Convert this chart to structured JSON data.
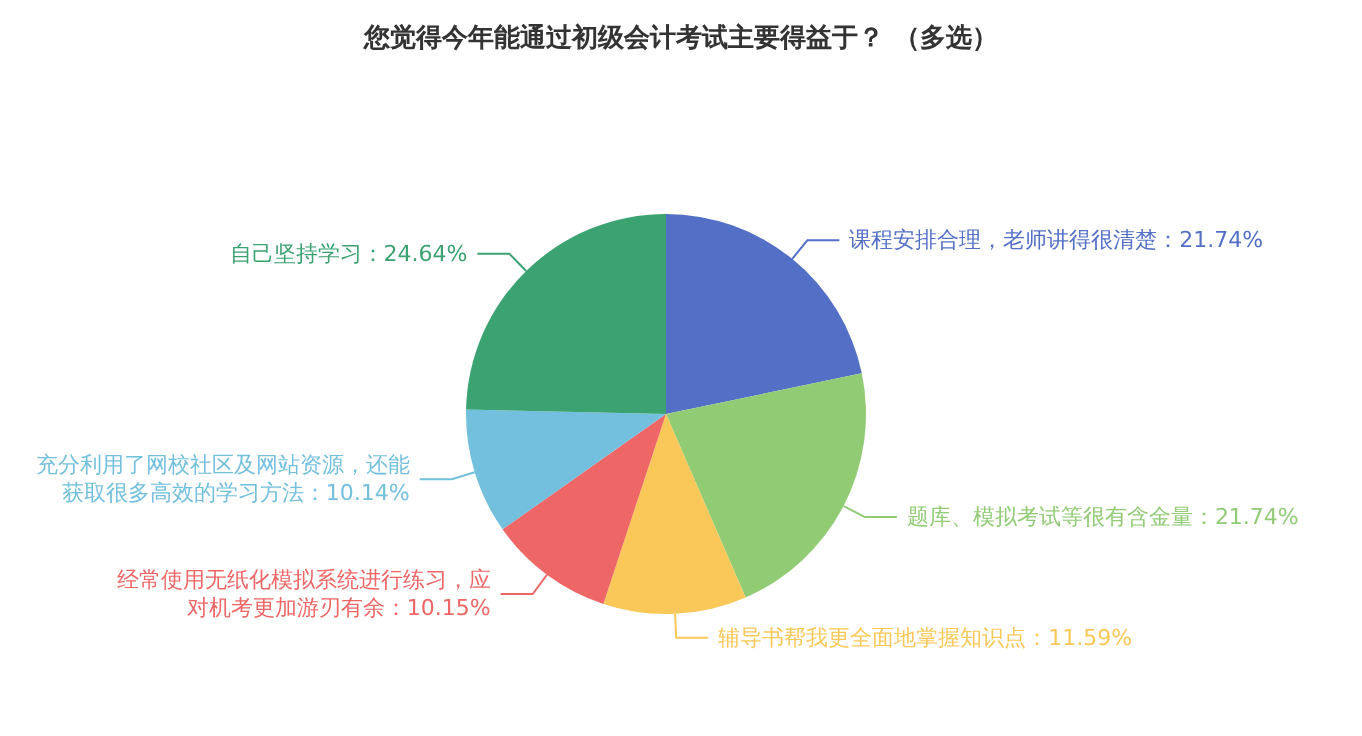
{
  "chart_data": {
    "type": "pie",
    "title": "您觉得今年能通过初级会计考试主要得益于？ （多选）",
    "categories": [
      "课程安排合理，老师讲得很清楚",
      "题库、模拟考试等很有含金量",
      "辅导书帮我更全面地掌握知识点",
      "经常使用无纸化模拟系统进行练习，应对机考更加游刃有余",
      "充分利用了网校社区及网站资源，还能获取很多高效的学习方法",
      "自己坚持学习"
    ],
    "values": [
      21.74,
      21.74,
      11.59,
      10.15,
      10.14,
      24.64
    ],
    "colors": [
      "#5470c6",
      "#91cc75",
      "#fac858",
      "#ee6666",
      "#73c0de",
      "#3ba272"
    ],
    "value_labels": [
      "：21.74%",
      "：21.74%",
      "：11.59%",
      "：10.15%",
      "：10.14%",
      "：24.64%"
    ],
    "legend": false
  }
}
